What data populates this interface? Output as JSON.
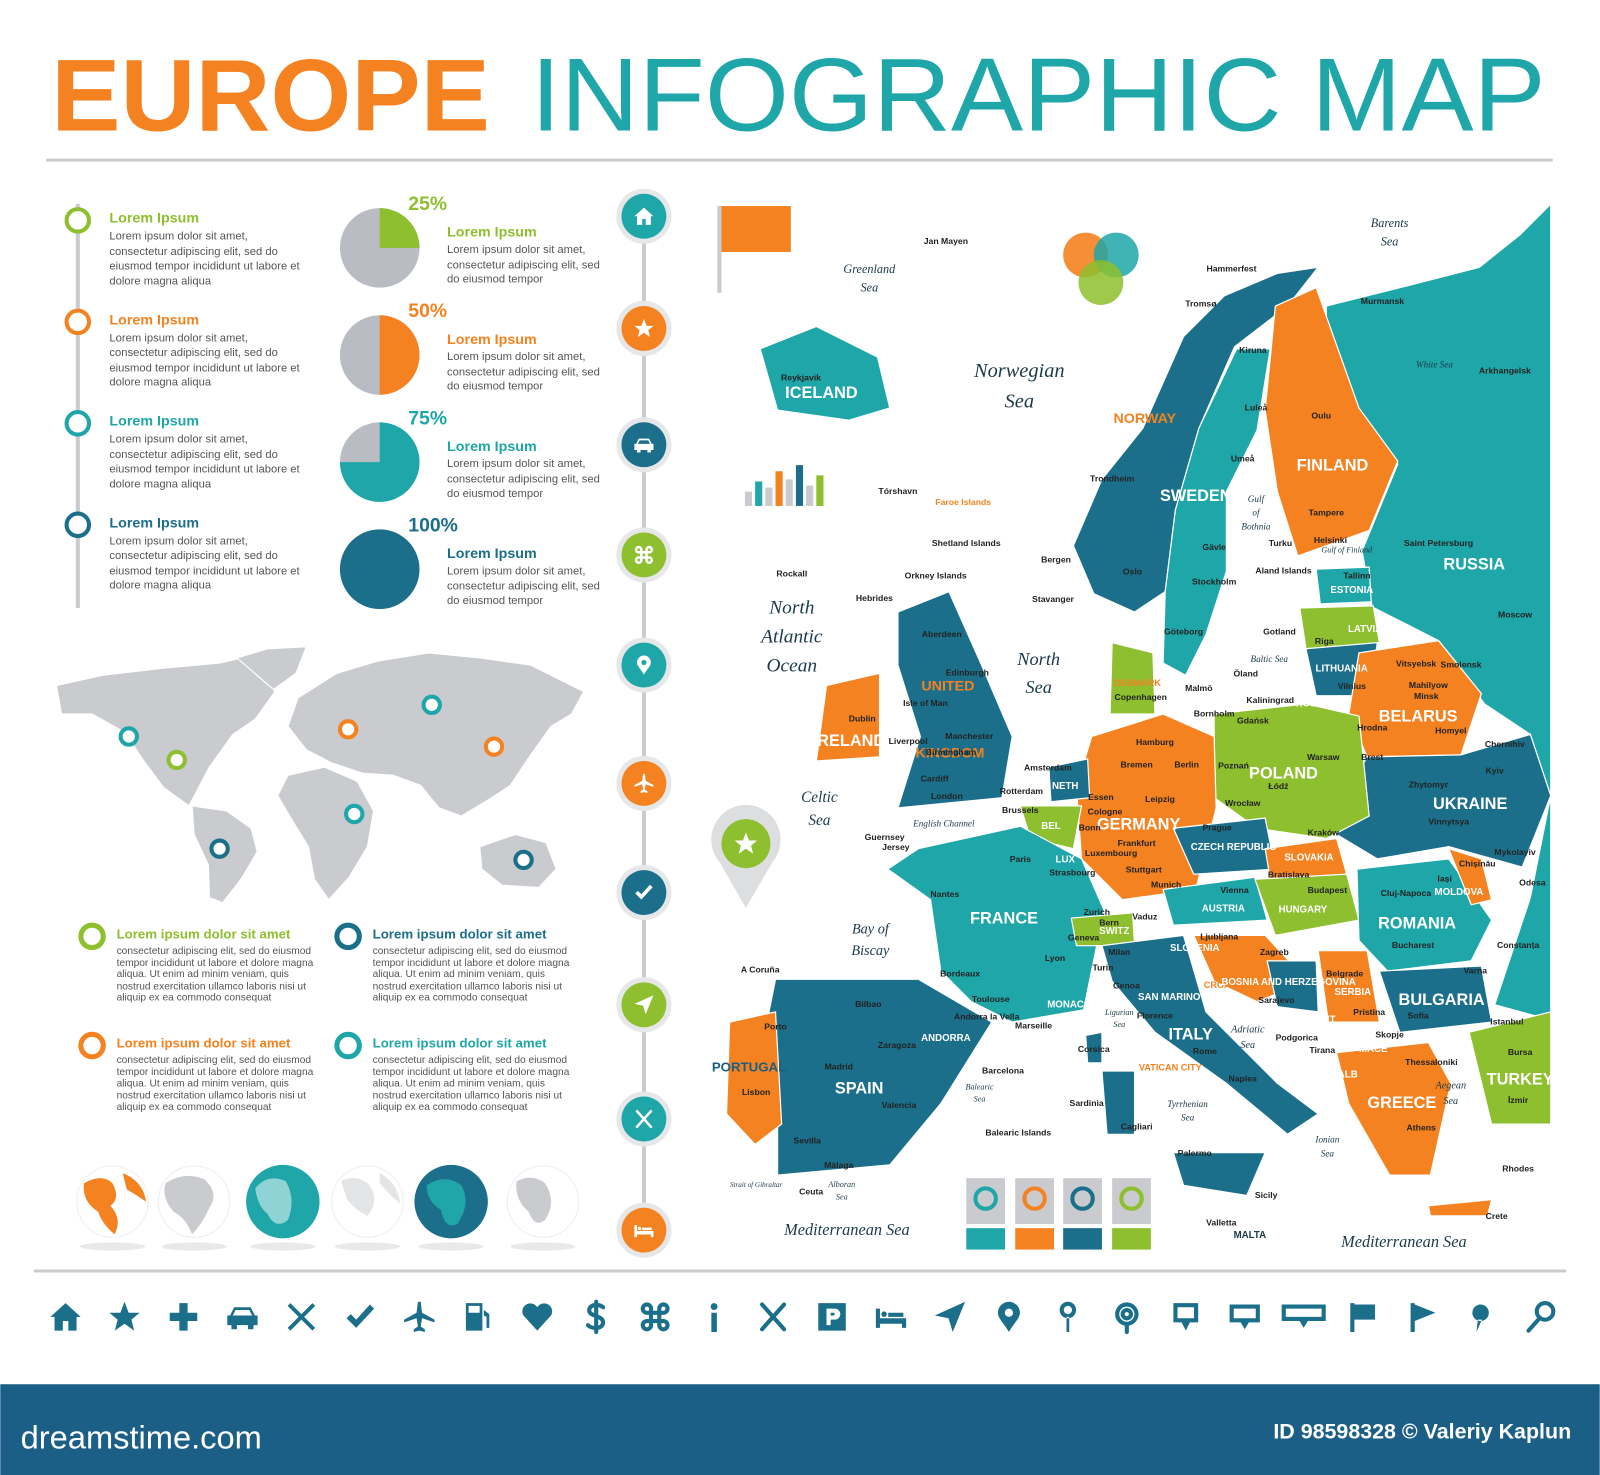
{
  "header": {
    "title_part1": "EUROPE",
    "title_part2": "INFOGRAPHIC MAP"
  },
  "steps": [
    {
      "title": "Lorem Ipsum",
      "text": "Lorem ipsum dolor sit amet, consectetur adipiscing elit, sed do eiusmod tempor incididunt ut labore et dolore magna aliqua"
    },
    {
      "title": "Lorem Ipsum",
      "text": "Lorem ipsum dolor sit amet, consectetur adipiscing elit, sed do eiusmod tempor incididunt ut labore et dolore magna aliqua"
    },
    {
      "title": "Lorem Ipsum",
      "text": "Lorem ipsum dolor sit amet, consectetur adipiscing elit, sed do eiusmod tempor incididunt ut labore et dolore magna aliqua"
    },
    {
      "title": "Lorem Ipsum",
      "text": "Lorem ipsum dolor sit amet, consectetur adipiscing elit, sed do eiusmod tempor incididunt ut labore et dolore magna aliqua"
    }
  ],
  "pies": {
    "values": [
      25,
      50,
      75,
      100
    ],
    "value_labels": [
      "25%",
      "50%",
      "75%",
      "100%"
    ],
    "colors": [
      "#8dbf2e",
      "#f58220",
      "#1fa6a8",
      "#1b6f8a"
    ],
    "items": [
      {
        "title": "Lorem Ipsum",
        "text": "Lorem ipsum dolor sit amet, consectetur adipiscing elit, sed do eiusmod tempor"
      },
      {
        "title": "Lorem Ipsum",
        "text": "Lorem ipsum dolor sit amet, consectetur adipiscing elit, sed do eiusmod tempor"
      },
      {
        "title": "Lorem Ipsum",
        "text": "Lorem ipsum dolor sit amet, consectetur adipiscing elit, sed do eiusmod tempor"
      },
      {
        "title": "Lorem Ipsum",
        "text": "Lorem ipsum dolor sit amet, consectetur adipiscing elit, sed do eiusmod tempor"
      }
    ]
  },
  "notes": [
    {
      "title": "Lorem ipsum dolor sit amet",
      "text": "consectetur adipiscing elit, sed do eiusmod tempor incididunt ut labore et dolore magna aliqua. Ut enim ad minim veniam, quis nostrud exercitation ullamco laboris nisi ut aliquip ex ea commodo consequat"
    },
    {
      "title": "Lorem ipsum dolor sit amet",
      "text": "consectetur adipiscing elit, sed do eiusmod tempor incididunt ut labore et dolore magna aliqua. Ut enim ad minim veniam, quis nostrud exercitation ullamco laboris nisi ut aliquip ex ea commodo consequat"
    },
    {
      "title": "Lorem ipsum dolor sit amet",
      "text": "consectetur adipiscing elit, sed do eiusmod tempor incididunt ut labore et dolore magna aliqua. Ut enim ad minim veniam, quis nostrud exercitation ullamco laboris nisi ut aliquip ex ea commodo consequat"
    },
    {
      "title": "Lorem ipsum dolor sit amet",
      "text": "consectetur adipiscing elit, sed do eiusmod tempor incididunt ut labore et dolore magna aliqua. Ut enim ad minim veniam, quis nostrud exercitation ullamco laboris nisi ut aliquip ex ea commodo consequat"
    }
  ],
  "map": {
    "countries": [
      "ICELAND",
      "NORWAY",
      "SWEDEN",
      "FINLAND",
      "RUSSIA",
      "ESTONIA",
      "LATVIA",
      "LITHUANIA",
      "BELARUS",
      "POLAND",
      "UKRAINE",
      "GERMANY",
      "UNITED",
      "KINGDOM",
      "IRELAND",
      "FRANCE",
      "SPAIN",
      "PORTUGAL",
      "ITALY",
      "ROMANIA",
      "BULGARIA",
      "GREECE",
      "TURKEY",
      "HUNGARY",
      "AUSTRIA",
      "CZECH REPUBLIC",
      "SLOVAKIA",
      "MOLDOVA",
      "SERBIA",
      "CROATIA",
      "SLOVENIA",
      "DENMARK",
      "NETH",
      "BEL",
      "LUX",
      "SWITZ",
      "LIECH",
      "ANDORRA",
      "MONACO",
      "SAN MARINO",
      "VATICAN CITY",
      "BOSNIA AND HERZEGOVINA",
      "MONT",
      "KOS",
      "MACE",
      "ALB",
      "MALTA",
      "RUSSIA"
    ],
    "seas": [
      [
        "Norwegian",
        "Sea"
      ],
      [
        "North",
        "Atlantic",
        "Ocean"
      ],
      [
        "North",
        "Sea"
      ],
      [
        "Celtic",
        "Sea"
      ],
      [
        "Bay of",
        "Biscay"
      ],
      [
        "Mediterranean Sea"
      ],
      [
        "Mediterranean Sea"
      ],
      [
        "Barents",
        "Sea"
      ],
      [
        "Greenland",
        "Sea"
      ],
      [
        "White Sea"
      ],
      [
        "Baltic Sea"
      ],
      [
        "Gulf",
        "of",
        "Bothnia"
      ],
      [
        "Gulf of Finland"
      ],
      [
        "Adriatic",
        "Sea"
      ],
      [
        "Tyrrhenian",
        "Sea"
      ],
      [
        "Ionian",
        "Sea"
      ],
      [
        "Aegean",
        "Sea"
      ],
      [
        "Ligurian",
        "Sea"
      ],
      [
        "Balearic",
        "Sea"
      ],
      [
        "Alboran",
        "Sea"
      ],
      [
        "English Channel"
      ],
      [
        "Strait of Gibraltar"
      ]
    ],
    "cities": [
      "Reykjavik",
      "Tórshavn",
      "Faroe Islands",
      "Jan Mayen",
      "Hammerfest",
      "Tromsø",
      "Murmansk",
      "Kiruna",
      "Luleå",
      "Oulu",
      "Umeå",
      "Trondheim",
      "Arkhangelsk",
      "Tampere",
      "Helsinki",
      "Turku",
      "Tallinn",
      "Saint Petersburg",
      "Stockholm",
      "Oslo",
      "Bergen",
      "Stavanger",
      "Gävle",
      "Göteborg",
      "Gotland",
      "Riga",
      "Moscow",
      "Smolensk",
      "Vilnius",
      "Vitsyebsk",
      "Minsk",
      "Mahilyow",
      "Hrodna",
      "Homyel",
      "Kaliningrad",
      "Copenhagen",
      "Malmö",
      "Bornholm",
      "Gdańsk",
      "Warsaw",
      "Poznań",
      "Łódź",
      "Wrocław",
      "Kraków",
      "Brest",
      "Kyiv",
      "Chernihiv",
      "Zhytomyr",
      "Vinnytsya",
      "Dublin",
      "Edinburgh",
      "Aberdeen",
      "Liverpool",
      "Birmingham",
      "London",
      "Cardiff",
      "Manchester",
      "Amsterdam",
      "Rotterdam",
      "Hamburg",
      "Bremen",
      "Berlin",
      "Essen",
      "Cologne",
      "Bonn",
      "Leipzig",
      "Frankfurt",
      "Stuttgart",
      "Munich",
      "Brussels",
      "Luxembourg",
      "Strasbourg",
      "Paris",
      "Nantes",
      "Bordeaux",
      "Lyon",
      "Toulouse",
      "Marseille",
      "Prague",
      "Vienna",
      "Bratislava",
      "Budapest",
      "Ljubljana",
      "Zagreb",
      "Sarajevo",
      "Belgrade",
      "Podgorica",
      "Tirana",
      "Pristina",
      "Skopje",
      "Sofia",
      "Bucharest",
      "Constanța",
      "Cluj-Napoca",
      "Iași",
      "Chișinău",
      "Odesa",
      "Mykolayiv",
      "Varna",
      "Istanbul",
      "Bursa",
      "İzmir",
      "Thessaloniki",
      "Athens",
      "Rhodes",
      "Crete",
      "Sicily",
      "Palermo",
      "Valletta",
      "Naples",
      "Rome",
      "Florence",
      "Genoa",
      "Milan",
      "Turin",
      "Zurich",
      "Bern",
      "Geneva",
      "Vaduz",
      "Madrid",
      "Barcelona",
      "Valencia",
      "Sevilla",
      "Málaga",
      "Bilbao",
      "Zaragoza",
      "A Coruña",
      "Porto",
      "Lisbon",
      "Ceuta",
      "Andorra la Vella",
      "Corsica",
      "Sardinia",
      "Cagliari",
      "Rockall",
      "Hebrides",
      "Orkney Islands",
      "Shetland Islands",
      "Aland Islands",
      "Öland",
      "Guernsey",
      "Jersey",
      "Isle of Man",
      "Balearic Islands"
    ]
  },
  "footer": {
    "site": "dreamstime.com",
    "credit": "ID 98598328 © Valeriy Kaplun"
  }
}
